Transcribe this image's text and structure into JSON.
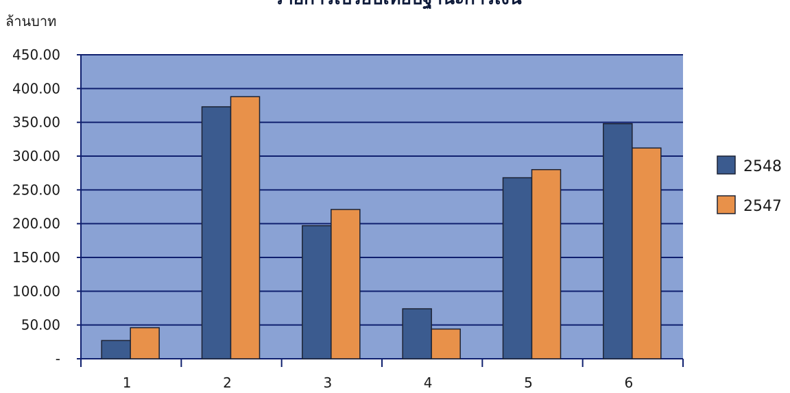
{
  "chart_data": {
    "type": "bar",
    "title": "รายการเปรียบเทียบฐานะการเงิน",
    "ylabel": "ล้านบาท",
    "xlabel": "",
    "categories": [
      "1",
      "2",
      "3",
      "4",
      "5",
      "6"
    ],
    "ylim": [
      0,
      450
    ],
    "yticks": [
      0,
      50,
      100,
      150,
      200,
      250,
      300,
      350,
      400,
      450
    ],
    "ytick_labels": [
      "-",
      "50.00",
      "100.00",
      "150.00",
      "200.00",
      "250.00",
      "300.00",
      "350.00",
      "400.00",
      "450.00"
    ],
    "grid": true,
    "legend_position": "right",
    "series": [
      {
        "name": "2548",
        "color": "#3b5b8f",
        "values": [
          27,
          373,
          197,
          74,
          268,
          348
        ]
      },
      {
        "name": "2547",
        "color": "#e8914a",
        "values": [
          46,
          388,
          221,
          44,
          280,
          312
        ]
      }
    ],
    "plot_background": "#8aa2d4",
    "gridline_color": "#0f1f6e"
  }
}
